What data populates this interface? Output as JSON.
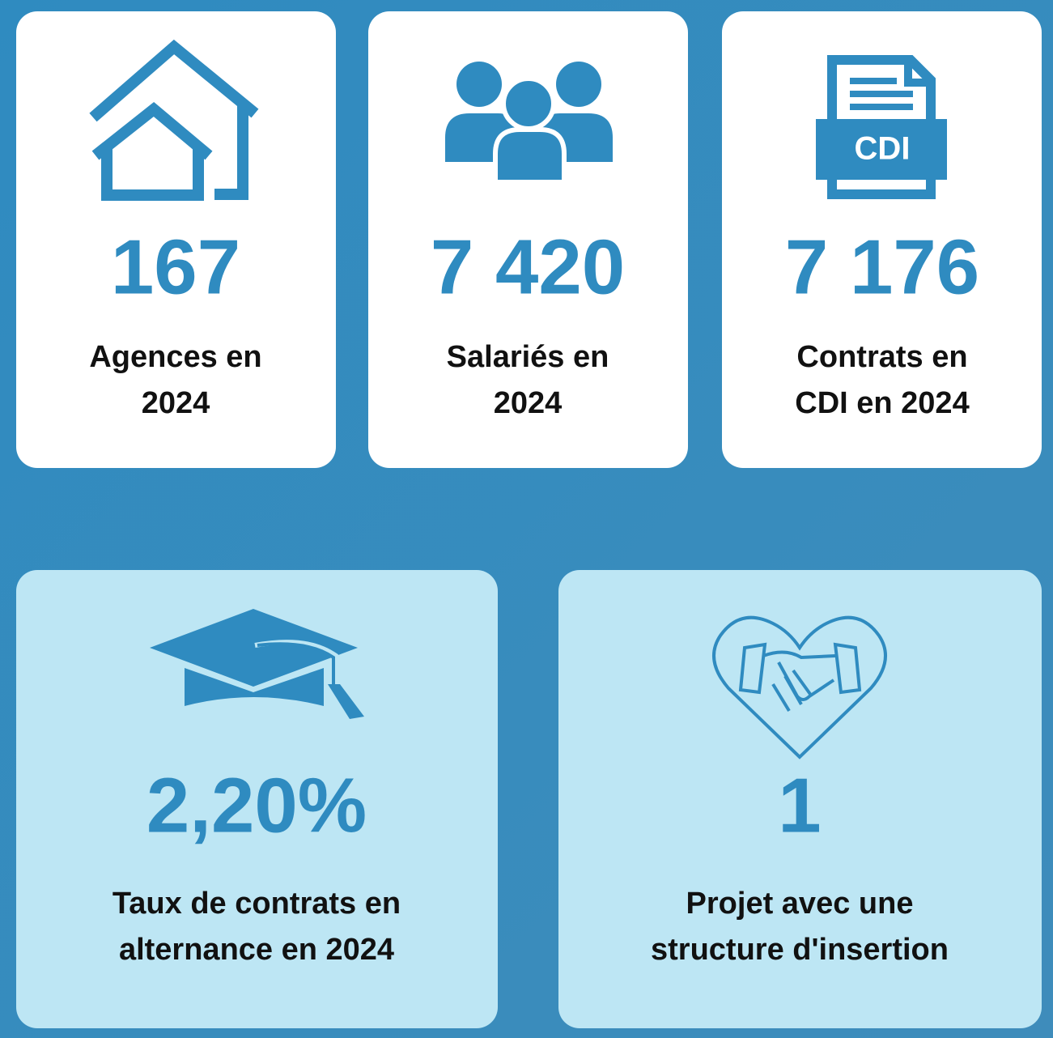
{
  "cards": [
    {
      "value": "167",
      "label": [
        "Agences en",
        "2024"
      ]
    },
    {
      "value": "7 420",
      "label": [
        "Salariés en",
        "2024"
      ]
    },
    {
      "value": "7 176",
      "label": [
        "Contrats en",
        "CDI en 2024"
      ],
      "icon_text": "CDI"
    },
    {
      "value": "2,20%",
      "label": [
        "Taux de contrats en",
        "alternance en 2024"
      ]
    },
    {
      "value": "1",
      "label": [
        "Projet avec une",
        "structure d'insertion"
      ]
    }
  ]
}
